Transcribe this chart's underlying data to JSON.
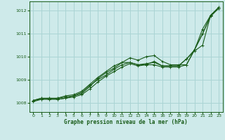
{
  "title": "Graphe pression niveau de la mer (hPa)",
  "background_color": "#ceeaea",
  "grid_color": "#aad4d4",
  "line_color": "#1a5c1a",
  "xlim": [
    -0.5,
    23.5
  ],
  "ylim": [
    1007.6,
    1012.4
  ],
  "xticks": [
    0,
    1,
    2,
    3,
    4,
    5,
    6,
    7,
    8,
    9,
    10,
    11,
    12,
    13,
    14,
    15,
    16,
    17,
    18,
    19,
    20,
    21,
    22,
    23
  ],
  "yticks": [
    1008,
    1009,
    1010,
    1011,
    1012
  ],
  "series": [
    [
      1008.1,
      1008.15,
      1008.2,
      1008.15,
      1008.2,
      1008.25,
      1008.35,
      1008.6,
      1008.9,
      1009.15,
      1009.35,
      1009.55,
      1009.7,
      1009.6,
      1009.65,
      1009.65,
      1009.55,
      1009.55,
      1009.55,
      1009.65,
      1010.3,
      1011.0,
      1011.75,
      1012.1
    ],
    [
      1008.1,
      1008.2,
      1008.15,
      1008.2,
      1008.25,
      1008.3,
      1008.4,
      1008.7,
      1009.05,
      1009.3,
      1009.5,
      1009.75,
      1009.95,
      1009.85,
      1010.0,
      1010.05,
      1009.8,
      1009.65,
      1009.65,
      1009.65,
      1010.3,
      1011.2,
      1011.8,
      1012.1
    ],
    [
      1008.1,
      1008.2,
      1008.2,
      1008.2,
      1008.3,
      1008.35,
      1008.5,
      1008.8,
      1009.1,
      1009.35,
      1009.6,
      1009.75,
      1009.75,
      1009.65,
      1009.7,
      1009.75,
      1009.6,
      1009.6,
      1009.6,
      1009.9,
      1010.25,
      1010.5,
      1011.8,
      1012.15
    ],
    [
      1008.05,
      1008.15,
      1008.15,
      1008.15,
      1008.2,
      1008.3,
      1008.45,
      1008.75,
      1009.0,
      1009.2,
      1009.45,
      1009.65,
      1009.75,
      1009.65,
      1009.65,
      1009.8,
      1009.6,
      1009.6,
      1009.6,
      1009.9,
      1010.3,
      1011.0,
      1011.8,
      1012.1
    ]
  ]
}
